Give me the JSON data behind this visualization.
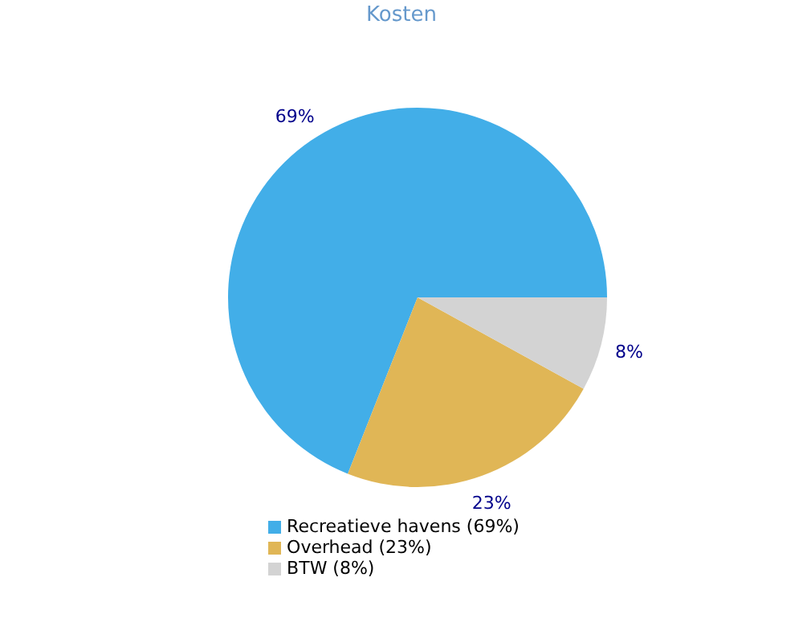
{
  "chart_data": {
    "type": "pie",
    "title": "Kosten",
    "categories": [
      "Recreatieve havens (69%)",
      "Overhead (23%)",
      "BTW (8%)"
    ],
    "values": [
      69,
      23,
      8
    ],
    "colors": [
      "#42aee8",
      "#e0b656",
      "#d3d3d3"
    ],
    "value_labels": [
      "69%",
      "23%",
      "8%"
    ],
    "legend": "bottom"
  }
}
